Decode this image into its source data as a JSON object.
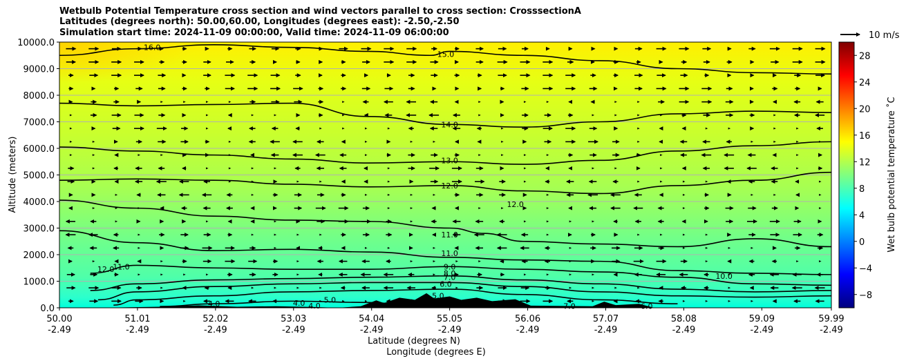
{
  "chart_data": {
    "type": "heatmap",
    "title_lines": [
      "Wetbulb Potential Temperature cross section and wind vectors parallel to cross section: CrosssectionA",
      "Latitudes (degrees north): 50.00,60.00, Longitudes (degrees east): -2.50,-2.50",
      "Simulation start time: 2024-11-09 00:00:00, Valid time: 2024-11-09 06:00:00"
    ],
    "xlabel_lines": [
      "Latitude (degrees N)",
      "Longitude (degrees E)"
    ],
    "ylabel": "Altitude (meters)",
    "x_ticks": [
      {
        "lat": "50.00",
        "lon": "-2.49",
        "value": 50.0
      },
      {
        "lat": "51.01",
        "lon": "-2.49",
        "value": 51.01
      },
      {
        "lat": "52.02",
        "lon": "-2.49",
        "value": 52.02
      },
      {
        "lat": "53.03",
        "lon": "-2.49",
        "value": 53.03
      },
      {
        "lat": "54.04",
        "lon": "-2.49",
        "value": 54.04
      },
      {
        "lat": "55.05",
        "lon": "-2.49",
        "value": 55.05
      },
      {
        "lat": "56.06",
        "lon": "-2.49",
        "value": 56.06
      },
      {
        "lat": "57.07",
        "lon": "-2.49",
        "value": 57.07
      },
      {
        "lat": "58.08",
        "lon": "-2.49",
        "value": 58.08
      },
      {
        "lat": "59.09",
        "lon": "-2.49",
        "value": 59.09
      },
      {
        "lat": "59.99",
        "lon": "-2.49",
        "value": 59.99
      }
    ],
    "y_ticks": [
      "0.0",
      "1000.0",
      "2000.0",
      "3000.0",
      "4000.0",
      "5000.0",
      "6000.0",
      "7000.0",
      "8000.0",
      "9000.0",
      "10000.0"
    ],
    "xlim": [
      50.0,
      59.99
    ],
    "ylim": [
      0,
      10000
    ],
    "grid": "horizontal",
    "colorbar": {
      "label": "Wet bulb potential temperature ˚C",
      "ticks": [
        "−8",
        "−4",
        "0",
        "4",
        "8",
        "12",
        "16",
        "20",
        "24",
        "28"
      ],
      "range": [
        -10,
        30
      ],
      "colormap": "jet"
    },
    "quiver_key": {
      "label": "10 m/s"
    },
    "contours": [
      {
        "level": 15.0,
        "label": "15.0",
        "points": [
          [
            50.0,
            9500
          ],
          [
            51.0,
            9750
          ],
          [
            52.0,
            9900
          ],
          [
            53.0,
            9800
          ],
          [
            54.0,
            9650
          ],
          [
            54.8,
            9500
          ],
          [
            55.05,
            9650
          ],
          [
            56.0,
            9500
          ],
          [
            57.0,
            9300
          ],
          [
            58.0,
            9000
          ],
          [
            59.0,
            8850
          ],
          [
            59.99,
            8800
          ]
        ]
      },
      {
        "level": 14.0,
        "label": "14.0",
        "points": [
          [
            50.0,
            7700
          ],
          [
            51.0,
            7600
          ],
          [
            52.0,
            7650
          ],
          [
            53.0,
            7700
          ],
          [
            54.0,
            7200
          ],
          [
            55.05,
            6900
          ],
          [
            56.0,
            6800
          ],
          [
            57.0,
            7000
          ],
          [
            58.0,
            7300
          ],
          [
            59.0,
            7400
          ],
          [
            59.99,
            7350
          ]
        ]
      },
      {
        "level": 13.0,
        "label": "13.0",
        "points": [
          [
            50.0,
            6050
          ],
          [
            51.0,
            5900
          ],
          [
            52.0,
            5750
          ],
          [
            53.0,
            5600
          ],
          [
            54.0,
            5450
          ],
          [
            55.05,
            5500
          ],
          [
            56.0,
            5400
          ],
          [
            57.0,
            5550
          ],
          [
            58.0,
            5900
          ],
          [
            59.0,
            6100
          ],
          [
            59.99,
            6250
          ]
        ]
      },
      {
        "level": 12.0,
        "label": "12.0",
        "points": [
          [
            50.0,
            4800
          ],
          [
            51.0,
            4850
          ],
          [
            52.0,
            4800
          ],
          [
            53.0,
            4650
          ],
          [
            54.0,
            4550
          ],
          [
            55.05,
            4600
          ],
          [
            56.0,
            4400
          ],
          [
            57.0,
            4300
          ],
          [
            58.0,
            4600
          ],
          [
            59.0,
            4800
          ],
          [
            59.99,
            5100
          ]
        ]
      },
      {
        "level": 11.0,
        "label": "11.0",
        "points": [
          [
            50.0,
            4050
          ],
          [
            51.0,
            3750
          ],
          [
            52.0,
            3450
          ],
          [
            53.0,
            3300
          ],
          [
            54.0,
            3250
          ],
          [
            55.05,
            3000
          ],
          [
            55.5,
            2800
          ],
          [
            56.0,
            2500
          ],
          [
            57.0,
            2400
          ],
          [
            58.0,
            2300
          ],
          [
            59.0,
            2600
          ],
          [
            59.99,
            2300
          ]
        ]
      },
      {
        "level": 10.0,
        "label": "10.0",
        "points": [
          [
            50.0,
            2900
          ],
          [
            51.0,
            2450
          ],
          [
            52.0,
            2150
          ],
          [
            53.0,
            2200
          ],
          [
            54.0,
            2100
          ],
          [
            55.05,
            1900
          ],
          [
            56.0,
            1800
          ],
          [
            57.0,
            1750
          ],
          [
            58.0,
            1400
          ],
          [
            59.0,
            1300
          ],
          [
            59.99,
            1250
          ]
        ]
      },
      {
        "level": 9.0,
        "label": "9.0",
        "points": [
          [
            50.4,
            1300
          ],
          [
            51.0,
            1600
          ],
          [
            52.0,
            1500
          ],
          [
            53.0,
            1450
          ],
          [
            54.0,
            1450
          ],
          [
            55.05,
            1550
          ],
          [
            56.0,
            1450
          ],
          [
            57.0,
            1350
          ],
          [
            58.0,
            1150
          ],
          [
            59.0,
            900
          ],
          [
            59.99,
            850
          ]
        ]
      },
      {
        "level": 7.0,
        "label": "7.0",
        "points": [
          [
            50.4,
            650
          ],
          [
            51.0,
            900
          ],
          [
            52.0,
            1050
          ],
          [
            53.0,
            1100
          ],
          [
            54.0,
            1150
          ],
          [
            55.05,
            1200
          ],
          [
            56.0,
            1050
          ],
          [
            57.0,
            900
          ],
          [
            58.0,
            700
          ],
          [
            59.0,
            600
          ],
          [
            59.99,
            650
          ]
        ]
      },
      {
        "level": 6.0,
        "label": "6.0",
        "points": [
          [
            50.5,
            300
          ],
          [
            51.0,
            600
          ],
          [
            52.0,
            800
          ],
          [
            53.0,
            900
          ],
          [
            54.0,
            950
          ],
          [
            55.05,
            950
          ],
          [
            56.0,
            800
          ],
          [
            57.0,
            600
          ],
          [
            58.0,
            450
          ],
          [
            59.0,
            400
          ],
          [
            59.99,
            450
          ]
        ]
      },
      {
        "level": 5.0,
        "label": "5.0",
        "points": [
          [
            50.7,
            100
          ],
          [
            51.0,
            300
          ],
          [
            52.0,
            450
          ],
          [
            53.0,
            600
          ],
          [
            54.0,
            650
          ],
          [
            55.05,
            700
          ],
          [
            56.0,
            500
          ],
          [
            57.0,
            300
          ],
          [
            58.0,
            150
          ]
        ]
      },
      {
        "level": 4.0,
        "label": "4.0",
        "points": [
          [
            51.3,
            50
          ],
          [
            52.0,
            150
          ],
          [
            53.0,
            250
          ],
          [
            54.0,
            200
          ],
          [
            54.5,
            120
          ]
        ]
      }
    ],
    "contour_labels": [
      {
        "text": "16.0",
        "x": 51.2,
        "y": 9800
      },
      {
        "text": "15.0",
        "x": 55.0,
        "y": 9550
      },
      {
        "text": "14.0",
        "x": 55.05,
        "y": 6900
      },
      {
        "text": "13.0",
        "x": 55.05,
        "y": 5550
      },
      {
        "text": "12.0",
        "x": 55.05,
        "y": 4600
      },
      {
        "text": "12.0",
        "x": 55.9,
        "y": 3900
      },
      {
        "text": "11.0",
        "x": 55.05,
        "y": 2750
      },
      {
        "text": "11.0",
        "x": 55.05,
        "y": 2050
      },
      {
        "text": "12.0",
        "x": 50.6,
        "y": 1450
      },
      {
        "text": "11.0",
        "x": 50.8,
        "y": 1550
      },
      {
        "text": "9.0",
        "x": 55.05,
        "y": 1550
      },
      {
        "text": "8.0",
        "x": 55.05,
        "y": 1300
      },
      {
        "text": "7.0",
        "x": 55.05,
        "y": 1150
      },
      {
        "text": "6.0",
        "x": 55.0,
        "y": 900
      },
      {
        "text": "5.0",
        "x": 54.9,
        "y": 450
      },
      {
        "text": "10.0",
        "x": 58.6,
        "y": 1200
      },
      {
        "text": "7.0",
        "x": 56.6,
        "y": 60
      },
      {
        "text": "6.0",
        "x": 57.6,
        "y": 60
      },
      {
        "text": "4.0",
        "x": 53.1,
        "y": 180
      },
      {
        "text": "4.0",
        "x": 53.3,
        "y": 80
      },
      {
        "text": "5.0",
        "x": 53.5,
        "y": 300
      },
      {
        "text": "4.0",
        "x": 52.0,
        "y": 150
      }
    ],
    "terrain_peaks": [
      [
        53.6,
        0
      ],
      [
        53.9,
        60
      ],
      [
        54.1,
        280
      ],
      [
        54.2,
        180
      ],
      [
        54.4,
        380
      ],
      [
        54.6,
        300
      ],
      [
        54.75,
        550
      ],
      [
        54.85,
        350
      ],
      [
        55.05,
        430
      ],
      [
        55.2,
        300
      ],
      [
        55.4,
        380
      ],
      [
        55.6,
        250
      ],
      [
        55.9,
        320
      ],
      [
        56.1,
        80
      ],
      [
        56.9,
        60
      ],
      [
        57.05,
        230
      ],
      [
        57.2,
        100
      ],
      [
        57.5,
        150
      ],
      [
        57.7,
        0
      ]
    ],
    "terrain_left": [
      [
        50.5,
        0
      ],
      [
        51.3,
        40
      ],
      [
        51.8,
        90
      ],
      [
        52.3,
        40
      ],
      [
        52.8,
        60
      ],
      [
        53.3,
        30
      ],
      [
        53.6,
        0
      ]
    ]
  }
}
